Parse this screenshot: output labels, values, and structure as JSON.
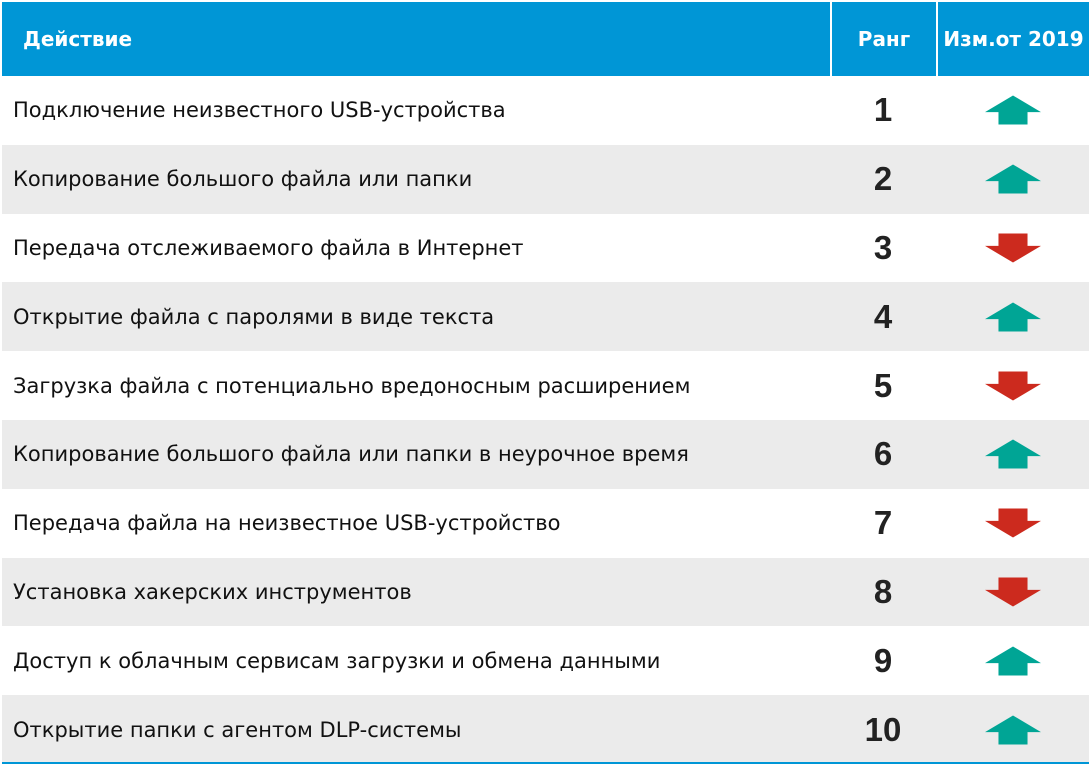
{
  "header": {
    "action": "Действие",
    "rank": "Ранг",
    "change": "Изм.от 2019"
  },
  "colors": {
    "header_bg": "#0096d6",
    "up": "#00a595",
    "down": "#cc2a1e",
    "row_alt": "#ebebeb"
  },
  "rows": [
    {
      "action": "Подключение неизвестного USB-устройства",
      "rank": "1",
      "change": "up",
      "icon": "arrow-up-icon"
    },
    {
      "action": "Копирование большого файла или папки",
      "rank": "2",
      "change": "up",
      "icon": "arrow-up-icon"
    },
    {
      "action": "Передача отслеживаемого файла в Интернет",
      "rank": "3",
      "change": "down",
      "icon": "arrow-down-icon"
    },
    {
      "action": "Открытие файла с паролями в виде текста",
      "rank": "4",
      "change": "up",
      "icon": "arrow-up-icon"
    },
    {
      "action": "Загрузка файла с потенциально вредоносным расширением",
      "rank": "5",
      "change": "down",
      "icon": "arrow-down-icon"
    },
    {
      "action": "Копирование большого файла или папки в неурочное время",
      "rank": "6",
      "change": "up",
      "icon": "arrow-up-icon"
    },
    {
      "action": "Передача файла на неизвестное USB-устройство",
      "rank": "7",
      "change": "down",
      "icon": "arrow-down-icon"
    },
    {
      "action": "Установка хакерских инструментов",
      "rank": "8",
      "change": "down",
      "icon": "arrow-down-icon"
    },
    {
      "action": "Доступ к облачным сервисам загрузки и обмена данными",
      "rank": "9",
      "change": "up",
      "icon": "arrow-up-icon"
    },
    {
      "action": "Открытие папки с агентом DLP-системы",
      "rank": "10",
      "change": "up",
      "icon": "arrow-up-icon"
    }
  ]
}
